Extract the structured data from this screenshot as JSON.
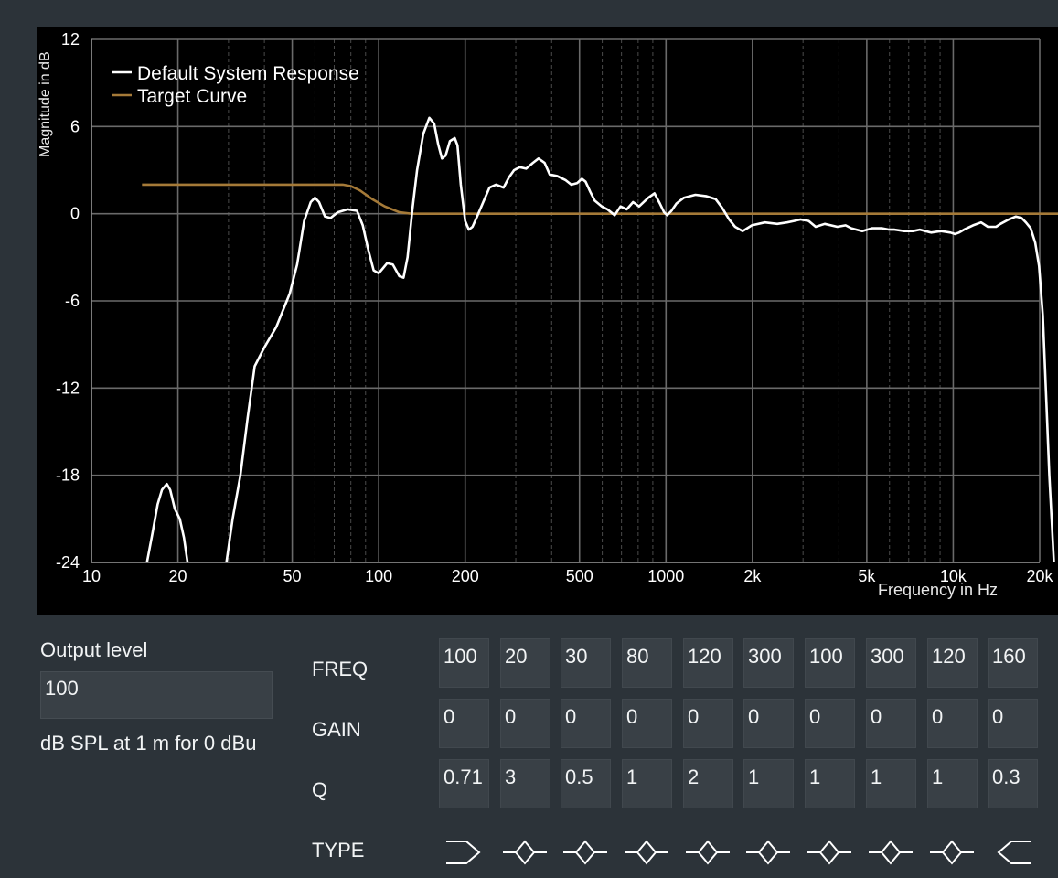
{
  "chart": {
    "ylabel": "Magnitude in dB",
    "xlabel": "Frequency in Hz",
    "y_ticks": [
      "12",
      "6",
      "0",
      "-6",
      "-12",
      "-18",
      "-24"
    ],
    "x_ticks": [
      "10",
      "20",
      "50",
      "100",
      "200",
      "500",
      "1000",
      "2k",
      "5k",
      "10k",
      "20k"
    ],
    "legend": [
      {
        "label": "Default System Response",
        "color": "#ffffff"
      },
      {
        "label": "Target Curve",
        "color": "#a57a38"
      }
    ]
  },
  "chart_data": {
    "type": "line",
    "xlabel": "Frequency in Hz",
    "ylabel": "Magnitude in dB",
    "x_scale": "log",
    "xlim": [
      10,
      24000
    ],
    "ylim": [
      -24,
      12
    ],
    "grid": true,
    "legend_position": "top-left",
    "series": [
      {
        "name": "Default System Response",
        "color": "#ffffff",
        "segments": [
          [
            [
              15.6,
              -24
            ],
            [
              16.3,
              -22
            ],
            [
              17,
              -20
            ],
            [
              17.6,
              -19
            ],
            [
              18.3,
              -18.6
            ],
            [
              18.8,
              -19
            ],
            [
              19.5,
              -20.3
            ],
            [
              20.3,
              -21
            ],
            [
              21,
              -22.3
            ],
            [
              21.6,
              -24
            ]
          ],
          [
            [
              29.5,
              -24
            ],
            [
              31,
              -21
            ],
            [
              33,
              -18
            ],
            [
              35,
              -14
            ],
            [
              37,
              -10.5
            ],
            [
              40,
              -9.2
            ],
            [
              44,
              -7.8
            ],
            [
              49,
              -5.5
            ],
            [
              52,
              -3.5
            ],
            [
              55,
              -0.5
            ],
            [
              58,
              0.8
            ],
            [
              60,
              1.1
            ],
            [
              62,
              0.8
            ],
            [
              65,
              -0.2
            ],
            [
              68,
              -0.3
            ],
            [
              72,
              0.1
            ],
            [
              78,
              0.3
            ],
            [
              84,
              0.2
            ],
            [
              88,
              -0.8
            ],
            [
              92,
              -2.5
            ],
            [
              96,
              -3.9
            ],
            [
              100,
              -4.1
            ],
            [
              103,
              -3.8
            ],
            [
              107,
              -3.4
            ],
            [
              112,
              -3.5
            ],
            [
              118,
              -4.3
            ],
            [
              122,
              -4.4
            ],
            [
              126,
              -3
            ],
            [
              131,
              0.3
            ],
            [
              136,
              3
            ],
            [
              143,
              5.5
            ],
            [
              150,
              6.6
            ],
            [
              156,
              6.2
            ],
            [
              161,
              4.8
            ],
            [
              166,
              3.8
            ],
            [
              171,
              4
            ],
            [
              177,
              5
            ],
            [
              184,
              5.2
            ],
            [
              188,
              4.7
            ],
            [
              193,
              2
            ],
            [
              200,
              -0.5
            ],
            [
              206,
              -1.1
            ],
            [
              212,
              -0.9
            ],
            [
              220,
              -0.2
            ],
            [
              230,
              0.7
            ],
            [
              243,
              1.8
            ],
            [
              256,
              2
            ],
            [
              272,
              1.8
            ],
            [
              284,
              2.5
            ],
            [
              296,
              3
            ],
            [
              310,
              3.2
            ],
            [
              326,
              3.1
            ],
            [
              344,
              3.5
            ],
            [
              360,
              3.8
            ],
            [
              378,
              3.5
            ],
            [
              394,
              2.7
            ],
            [
              418,
              2.6
            ],
            [
              448,
              2.3
            ],
            [
              468,
              2
            ],
            [
              490,
              2.1
            ],
            [
              510,
              2.4
            ],
            [
              525,
              2.2
            ],
            [
              545,
              1.5
            ],
            [
              565,
              0.9
            ],
            [
              598,
              0.5
            ],
            [
              625,
              0.3
            ],
            [
              663,
              -0.1
            ],
            [
              695,
              0.5
            ],
            [
              730,
              0.3
            ],
            [
              768,
              0.8
            ],
            [
              806,
              0.5
            ],
            [
              868,
              1.1
            ],
            [
              912,
              1.4
            ],
            [
              952,
              0.7
            ],
            [
              985,
              0.1
            ],
            [
              1010,
              -0.1
            ],
            [
              1045,
              0.2
            ],
            [
              1088,
              0.7
            ],
            [
              1155,
              1.1
            ],
            [
              1265,
              1.3
            ],
            [
              1385,
              1.2
            ],
            [
              1490,
              1
            ],
            [
              1570,
              0.4
            ],
            [
              1660,
              -0.4
            ],
            [
              1740,
              -0.9
            ],
            [
              1850,
              -1.2
            ],
            [
              1990,
              -0.8
            ],
            [
              2210,
              -0.6
            ],
            [
              2440,
              -0.7
            ],
            [
              2640,
              -0.6
            ],
            [
              2790,
              -0.5
            ],
            [
              2940,
              -0.4
            ],
            [
              3140,
              -0.5
            ],
            [
              3320,
              -0.9
            ],
            [
              3570,
              -0.7
            ],
            [
              3950,
              -0.9
            ],
            [
              4220,
              -0.8
            ],
            [
              4420,
              -1
            ],
            [
              4820,
              -1.2
            ],
            [
              5210,
              -1
            ],
            [
              5660,
              -1
            ],
            [
              5990,
              -1.1
            ],
            [
              6250,
              -1.1
            ],
            [
              6760,
              -1.2
            ],
            [
              7230,
              -1.2
            ],
            [
              7650,
              -1.1
            ],
            [
              8370,
              -1.3
            ],
            [
              9060,
              -1.2
            ],
            [
              9790,
              -1.3
            ],
            [
              10140,
              -1.4
            ],
            [
              10480,
              -1.3
            ],
            [
              10900,
              -1.1
            ],
            [
              11720,
              -0.8
            ],
            [
              12500,
              -0.6
            ],
            [
              13200,
              -0.9
            ],
            [
              14100,
              -0.9
            ],
            [
              14600,
              -0.7
            ],
            [
              15600,
              -0.4
            ],
            [
              16500,
              -0.2
            ],
            [
              17300,
              -0.3
            ],
            [
              17900,
              -0.6
            ],
            [
              18600,
              -1
            ],
            [
              19300,
              -2
            ],
            [
              19900,
              -3.6
            ],
            [
              20500,
              -7
            ],
            [
              21100,
              -13
            ],
            [
              21600,
              -18
            ],
            [
              22000,
              -21
            ],
            [
              22400,
              -24
            ]
          ]
        ]
      },
      {
        "name": "Target Curve",
        "color": "#a57a38",
        "points": [
          [
            15,
            2
          ],
          [
            75,
            2
          ],
          [
            80,
            1.9
          ],
          [
            86,
            1.6
          ],
          [
            95,
            1
          ],
          [
            105,
            0.5
          ],
          [
            118,
            0.1
          ],
          [
            130,
            0
          ],
          [
            24000,
            0
          ]
        ]
      }
    ]
  },
  "output": {
    "label": "Output level",
    "value": "100",
    "unit_text": "dB SPL at 1 m for 0 dBu"
  },
  "eq": {
    "row_labels": {
      "freq": "FREQ",
      "gain": "GAIN",
      "q": "Q",
      "type": "TYPE"
    },
    "bands": [
      {
        "freq": "100",
        "gain": "0",
        "q": "0.71",
        "type": "high-pass-icon"
      },
      {
        "freq": "20",
        "gain": "0",
        "q": "3",
        "type": "peak-icon"
      },
      {
        "freq": "30",
        "gain": "0",
        "q": "0.5",
        "type": "peak-icon"
      },
      {
        "freq": "80",
        "gain": "0",
        "q": "1",
        "type": "peak-icon"
      },
      {
        "freq": "120",
        "gain": "0",
        "q": "2",
        "type": "peak-icon"
      },
      {
        "freq": "300",
        "gain": "0",
        "q": "1",
        "type": "peak-icon"
      },
      {
        "freq": "100",
        "gain": "0",
        "q": "1",
        "type": "peak-icon"
      },
      {
        "freq": "300",
        "gain": "0",
        "q": "1",
        "type": "peak-icon"
      },
      {
        "freq": "120",
        "gain": "0",
        "q": "1",
        "type": "peak-icon"
      },
      {
        "freq": "160",
        "gain": "0",
        "q": "0.3",
        "type": "low-pass-icon"
      }
    ]
  }
}
